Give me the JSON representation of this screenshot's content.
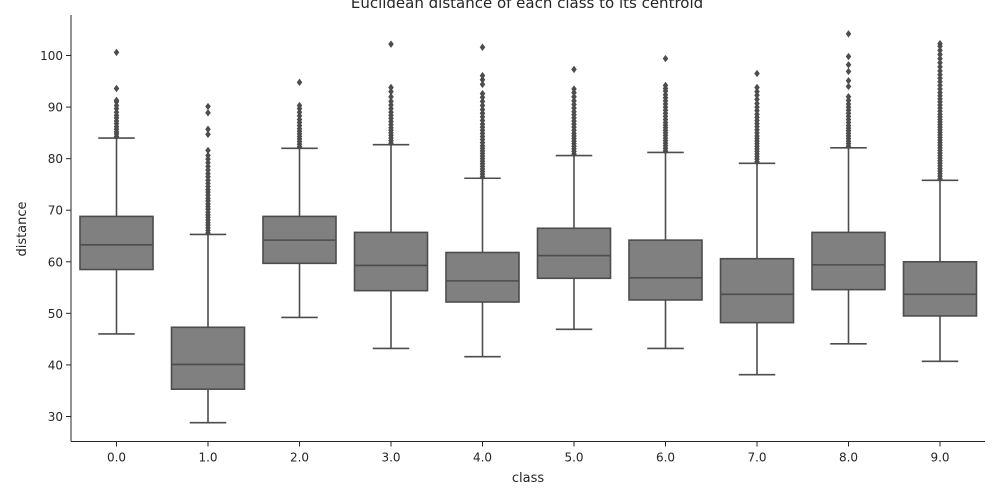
{
  "chart_data": {
    "type": "box",
    "title": "Euclidean distance of each class to its centroid",
    "xlabel": "class",
    "ylabel": "distance",
    "ylim": [
      25,
      108
    ],
    "yticks": [
      30,
      40,
      50,
      60,
      70,
      80,
      90,
      100
    ],
    "grid": false,
    "box_color": "#808080",
    "line_color": "#4d4d4d",
    "categories": [
      "0.0",
      "1.0",
      "2.0",
      "3.0",
      "4.0",
      "5.0",
      "6.0",
      "7.0",
      "8.0",
      "9.0"
    ],
    "boxes": [
      {
        "class": "0.0",
        "whisker_low": 46.0,
        "q1": 58.5,
        "median": 63.3,
        "q3": 68.8,
        "whisker_high": 84.0,
        "outliers": [
          84.3,
          84.8,
          85.2,
          85.7,
          86.2,
          86.8,
          87.3,
          87.9,
          88.4,
          89.0,
          89.7,
          90.3,
          91.0,
          91.3,
          93.6,
          100.6
        ]
      },
      {
        "class": "1.0",
        "whisker_low": 28.8,
        "q1": 35.3,
        "median": 40.1,
        "q3": 47.3,
        "whisker_high": 65.3,
        "outliers": [
          65.6,
          66.1,
          66.6,
          67.1,
          67.6,
          68.1,
          68.6,
          69.1,
          69.6,
          70.2,
          70.7,
          71.2,
          71.8,
          72.3,
          72.9,
          73.5,
          74.0,
          74.6,
          75.2,
          75.8,
          76.5,
          77.1,
          77.8,
          78.5,
          79.2,
          79.9,
          80.6,
          81.6,
          84.7,
          85.7,
          88.9,
          90.1
        ]
      },
      {
        "class": "2.0",
        "whisker_low": 49.2,
        "q1": 59.7,
        "median": 64.2,
        "q3": 68.8,
        "whisker_high": 82.0,
        "outliers": [
          82.3,
          82.8,
          83.3,
          83.8,
          84.3,
          84.8,
          85.3,
          85.8,
          86.4,
          87.0,
          87.6,
          88.3,
          89.0,
          89.7,
          90.3,
          94.8
        ]
      },
      {
        "class": "3.0",
        "whisker_low": 43.2,
        "q1": 54.4,
        "median": 59.3,
        "q3": 65.7,
        "whisker_high": 82.7,
        "outliers": [
          83.0,
          83.5,
          84.0,
          84.5,
          85.0,
          85.5,
          86.0,
          86.6,
          87.2,
          87.8,
          88.4,
          89.0,
          89.7,
          90.4,
          91.1,
          92.0,
          93.0,
          93.8,
          102.2
        ]
      },
      {
        "class": "4.0",
        "whisker_low": 41.6,
        "q1": 52.2,
        "median": 56.3,
        "q3": 61.8,
        "whisker_high": 76.2,
        "outliers": [
          76.5,
          77.0,
          77.5,
          78.0,
          78.5,
          79.0,
          79.5,
          80.0,
          80.5,
          81.0,
          81.5,
          82.0,
          82.5,
          83.1,
          83.7,
          84.3,
          84.9,
          85.5,
          86.1,
          86.7,
          87.4,
          88.1,
          88.8,
          89.5,
          90.3,
          91.1,
          91.9,
          92.6,
          94.4,
          95.3,
          96.1,
          101.6
        ]
      },
      {
        "class": "5.0",
        "whisker_low": 46.9,
        "q1": 56.8,
        "median": 61.2,
        "q3": 66.5,
        "whisker_high": 80.6,
        "outliers": [
          80.9,
          81.4,
          81.9,
          82.4,
          82.9,
          83.4,
          83.9,
          84.4,
          84.9,
          85.5,
          86.1,
          86.7,
          87.3,
          87.9,
          88.5,
          89.1,
          89.8,
          90.5,
          91.2,
          92.0,
          92.8,
          93.5,
          97.3
        ]
      },
      {
        "class": "6.0",
        "whisker_low": 43.2,
        "q1": 52.6,
        "median": 56.9,
        "q3": 64.2,
        "whisker_high": 81.2,
        "outliers": [
          81.5,
          82.0,
          82.5,
          83.0,
          83.5,
          84.0,
          84.5,
          85.0,
          85.5,
          86.0,
          86.5,
          87.0,
          87.6,
          88.2,
          88.8,
          89.4,
          90.0,
          90.6,
          91.2,
          91.8,
          92.4,
          93.1,
          93.6,
          94.2,
          99.4
        ]
      },
      {
        "class": "7.0",
        "whisker_low": 38.1,
        "q1": 48.2,
        "median": 53.7,
        "q3": 60.6,
        "whisker_high": 79.1,
        "outliers": [
          79.4,
          79.9,
          80.4,
          80.9,
          81.4,
          81.9,
          82.4,
          82.9,
          83.4,
          83.9,
          84.4,
          85.0,
          85.6,
          86.2,
          86.8,
          87.4,
          88.0,
          88.6,
          89.3,
          90.0,
          90.7,
          91.5,
          92.3,
          93.0,
          93.8,
          96.5
        ]
      },
      {
        "class": "8.0",
        "whisker_low": 44.1,
        "q1": 54.6,
        "median": 59.4,
        "q3": 65.7,
        "whisker_high": 82.1,
        "outliers": [
          82.4,
          82.9,
          83.4,
          83.9,
          84.4,
          84.9,
          85.4,
          85.9,
          86.4,
          87.0,
          87.6,
          88.2,
          88.8,
          89.4,
          90.0,
          90.6,
          91.3,
          92.0,
          94.0,
          95.1,
          96.9,
          98.2,
          99.8,
          104.2
        ]
      },
      {
        "class": "9.0",
        "whisker_low": 40.7,
        "q1": 49.5,
        "median": 53.7,
        "q3": 60.0,
        "whisker_high": 75.8,
        "outliers": [
          76.1,
          76.6,
          77.1,
          77.6,
          78.1,
          78.6,
          79.1,
          79.6,
          80.1,
          80.6,
          81.1,
          81.6,
          82.1,
          82.6,
          83.1,
          83.6,
          84.1,
          84.6,
          85.1,
          85.6,
          86.1,
          86.6,
          87.1,
          87.6,
          88.1,
          88.6,
          89.2,
          89.8,
          90.4,
          91.0,
          91.6,
          92.2,
          92.8,
          93.5,
          94.2,
          94.9,
          95.6,
          96.3,
          97.0,
          97.8,
          98.6,
          99.4,
          100.2,
          101.0,
          101.8,
          102.3
        ]
      }
    ]
  }
}
